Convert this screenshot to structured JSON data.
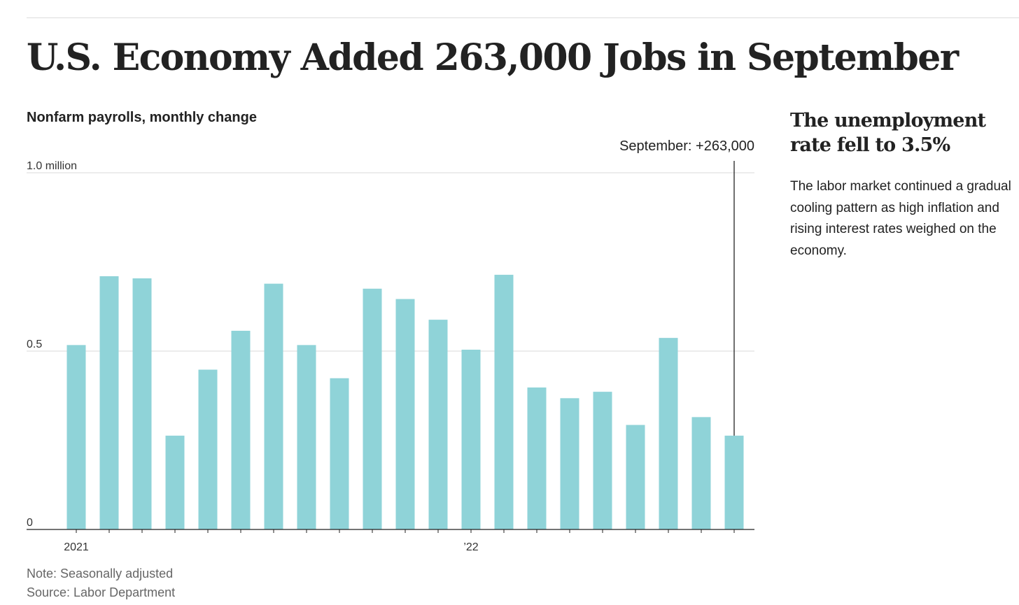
{
  "headline": "U.S. Economy Added 263,000 Jobs in September",
  "chart_subtitle": "Nonfarm payrolls, monthly change",
  "sidebar": {
    "title": "The unemployment rate fell to 3.5%",
    "body": "The labor market continued a gradual cooling pattern as high inflation and rising interest rates weighed on the economy."
  },
  "footer": {
    "note": "Note: Seasonally adjusted",
    "source": "Source: Labor Department"
  },
  "colors": {
    "bar": "#8fd3d8",
    "gridline": "#d9d9d9",
    "axis": "#222222",
    "annotation_line": "#222222"
  },
  "chart_data": {
    "type": "bar",
    "title": "Nonfarm payrolls, monthly change",
    "categories": [
      "2021",
      "",
      "",
      "",
      "",
      "",
      "",
      "",
      "",
      "",
      "",
      "",
      "’22",
      "",
      "",
      "",
      "",
      "",
      "",
      "",
      ""
    ],
    "values": [
      0.517,
      0.71,
      0.704,
      0.263,
      0.448,
      0.557,
      0.689,
      0.517,
      0.424,
      0.675,
      0.646,
      0.588,
      0.504,
      0.714,
      0.398,
      0.368,
      0.386,
      0.293,
      0.537,
      0.315,
      0.263
    ],
    "ylim": [
      0,
      1.0
    ],
    "y_ticks": [
      {
        "value": 0,
        "label": "0"
      },
      {
        "value": 0.5,
        "label": "0.5"
      },
      {
        "value": 1.0,
        "label": "1.0 million"
      }
    ],
    "x_tick_labels": [
      {
        "index": 0,
        "label": "2021"
      },
      {
        "index": 12,
        "label": "’22"
      }
    ],
    "grid": true,
    "annotation": {
      "index": 20,
      "text": "September: +263,000"
    },
    "xlabel": "",
    "ylabel": ""
  }
}
